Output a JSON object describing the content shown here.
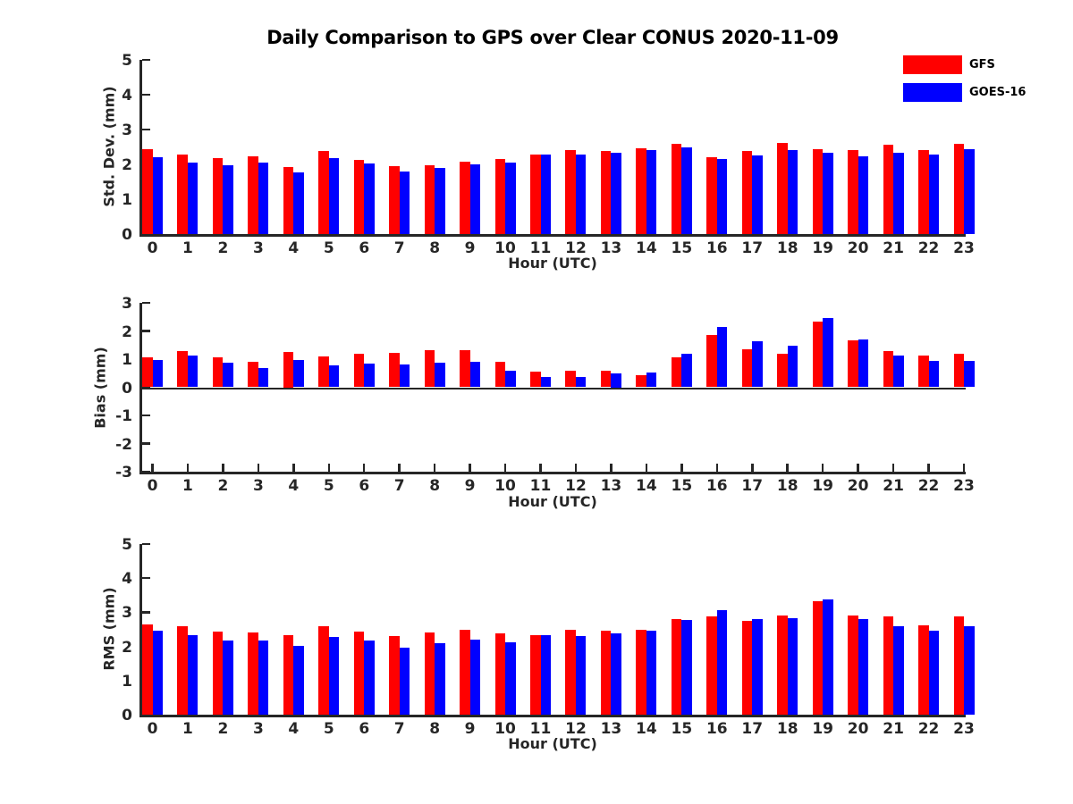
{
  "title": "Daily Comparison to GPS over Clear CONUS 2020-11-09",
  "legend": {
    "items": [
      {
        "label": "GFS",
        "color": "#ff0000"
      },
      {
        "label": "GOES-16",
        "color": "#0000ff"
      }
    ]
  },
  "colors": {
    "gfs": "#ff0000",
    "goes16": "#0000ff",
    "axis": "#262626",
    "background": "#ffffff"
  },
  "chart_data": [
    {
      "type": "bar",
      "title": "",
      "ylabel": "Std. Dev. (mm)",
      "xlabel": "Hour (UTC)",
      "ylim": [
        0,
        5
      ],
      "yticks": [
        0,
        1,
        2,
        3,
        4,
        5
      ],
      "grid": false,
      "legend_position": "outside-top-right",
      "categories": [
        "0",
        "1",
        "2",
        "3",
        "4",
        "5",
        "6",
        "7",
        "8",
        "9",
        "10",
        "11",
        "12",
        "13",
        "14",
        "15",
        "16",
        "17",
        "18",
        "19",
        "20",
        "21",
        "22",
        "23"
      ],
      "series": [
        {
          "name": "GFS",
          "color": "#ff0000",
          "values": [
            2.43,
            2.27,
            2.19,
            2.23,
            1.93,
            2.38,
            2.12,
            1.95,
            1.98,
            2.08,
            2.16,
            2.27,
            2.42,
            2.38,
            2.45,
            2.6,
            2.2,
            2.38,
            2.62,
            2.43,
            2.4,
            2.57,
            2.4,
            2.58
          ]
        },
        {
          "name": "GOES-16",
          "color": "#0000ff",
          "values": [
            2.21,
            2.06,
            1.97,
            2.06,
            1.78,
            2.17,
            2.02,
            1.8,
            1.9,
            2.01,
            2.04,
            2.29,
            2.28,
            2.33,
            2.4,
            2.5,
            2.15,
            2.26,
            2.41,
            2.33,
            2.22,
            2.33,
            2.27,
            2.44
          ]
        }
      ]
    },
    {
      "type": "bar",
      "title": "",
      "ylabel": "Bias (mm)",
      "xlabel": "Hour (UTC)",
      "ylim": [
        -3,
        3
      ],
      "yticks": [
        3,
        2,
        1,
        0,
        -1,
        -2,
        -3
      ],
      "grid": false,
      "categories": [
        "0",
        "1",
        "2",
        "3",
        "4",
        "5",
        "6",
        "7",
        "8",
        "9",
        "10",
        "11",
        "12",
        "13",
        "14",
        "15",
        "16",
        "17",
        "18",
        "19",
        "20",
        "21",
        "22",
        "23"
      ],
      "series": [
        {
          "name": "GFS",
          "color": "#ff0000",
          "values": [
            1.05,
            1.28,
            1.05,
            0.9,
            1.25,
            1.1,
            1.18,
            1.22,
            1.33,
            1.33,
            0.9,
            0.55,
            0.58,
            0.6,
            0.42,
            1.05,
            1.85,
            1.34,
            1.18,
            2.32,
            1.66,
            1.3,
            1.13,
            1.18
          ]
        },
        {
          "name": "GOES-16",
          "color": "#0000ff",
          "values": [
            0.98,
            1.12,
            0.87,
            0.68,
            0.97,
            0.77,
            0.85,
            0.82,
            0.88,
            0.92,
            0.6,
            0.35,
            0.37,
            0.5,
            0.53,
            1.2,
            2.15,
            1.63,
            1.47,
            2.47,
            1.7,
            1.13,
            0.93,
            0.93
          ]
        }
      ]
    },
    {
      "type": "bar",
      "title": "",
      "ylabel": "RMS (mm)",
      "xlabel": "Hour (UTC)",
      "ylim": [
        0,
        5
      ],
      "yticks": [
        0,
        1,
        2,
        3,
        4,
        5
      ],
      "grid": false,
      "categories": [
        "0",
        "1",
        "2",
        "3",
        "4",
        "5",
        "6",
        "7",
        "8",
        "9",
        "10",
        "11",
        "12",
        "13",
        "14",
        "15",
        "16",
        "17",
        "18",
        "19",
        "20",
        "21",
        "22",
        "23"
      ],
      "series": [
        {
          "name": "GFS",
          "color": "#ff0000",
          "values": [
            2.65,
            2.6,
            2.43,
            2.4,
            2.33,
            2.6,
            2.43,
            2.3,
            2.4,
            2.48,
            2.37,
            2.33,
            2.48,
            2.46,
            2.48,
            2.8,
            2.88,
            2.75,
            2.9,
            3.33,
            2.9,
            2.88,
            2.63,
            2.87
          ]
        },
        {
          "name": "GOES-16",
          "color": "#0000ff",
          "values": [
            2.45,
            2.34,
            2.18,
            2.18,
            2.02,
            2.28,
            2.18,
            1.96,
            2.1,
            2.21,
            2.13,
            2.34,
            2.31,
            2.37,
            2.46,
            2.77,
            3.05,
            2.79,
            2.83,
            3.38,
            2.79,
            2.6,
            2.46,
            2.6
          ]
        }
      ]
    }
  ]
}
